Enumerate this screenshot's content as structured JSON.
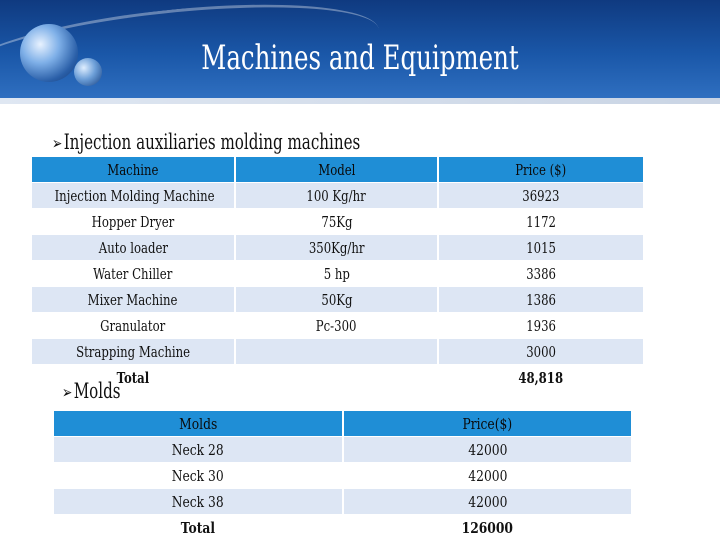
{
  "slide": {
    "title": "Machines and Equipment",
    "sections": {
      "injection_title": "Injection auxiliaries molding machines",
      "molds_title": "Molds"
    }
  },
  "machines_table": {
    "headers": [
      "Machine",
      "Model",
      "Price ($)"
    ],
    "rows": [
      [
        "Injection Molding Machine",
        "100 Kg/hr",
        "36923"
      ],
      [
        "Hopper Dryer",
        "75Kg",
        "1172"
      ],
      [
        "Auto loader",
        "350Kg/hr",
        "1015"
      ],
      [
        "Water Chiller",
        "5 hp",
        "3386"
      ],
      [
        "Mixer Machine",
        "50Kg",
        "1386"
      ],
      [
        "Granulator",
        "Pc-300",
        "1936"
      ],
      [
        "Strapping Machine",
        "",
        "3000"
      ]
    ],
    "total_label": "Total",
    "total_value": "48,818"
  },
  "molds_table": {
    "headers": [
      "Molds",
      "Price($)"
    ],
    "rows": [
      [
        "Neck 28",
        "42000"
      ],
      [
        "Neck 30",
        "42000"
      ],
      [
        "Neck 38",
        "42000"
      ]
    ],
    "total_label": "Total",
    "total_value": "126000"
  },
  "colors": {
    "header_blue": "#1f8ed6",
    "band_row": "#dde6f4",
    "title_bar": "#1a57a8"
  },
  "icons": {
    "logo": "globe-logo-icon",
    "bullet": "arrow-bullet-icon"
  }
}
